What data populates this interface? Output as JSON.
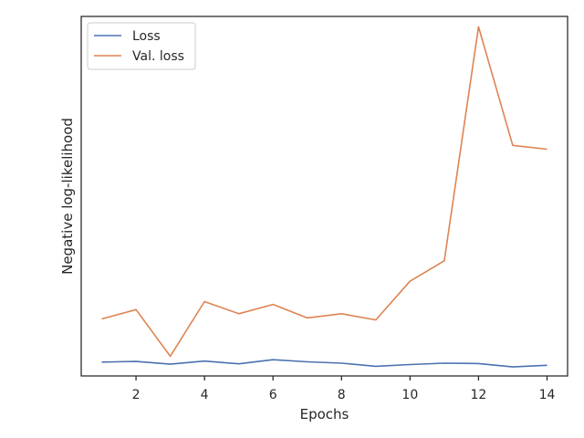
{
  "chart_data": {
    "type": "line",
    "title": "",
    "xlabel": "Epochs",
    "ylabel": "Negative log-likelihood",
    "x": [
      1,
      2,
      3,
      4,
      5,
      6,
      7,
      8,
      9,
      10,
      11,
      12,
      13,
      14
    ],
    "xlim": [
      0.4,
      14.6
    ],
    "ylim": [
      -0.1,
      10.3
    ],
    "xticks": [
      2,
      4,
      6,
      8,
      10,
      12,
      14
    ],
    "yticks_visible": false,
    "grid": false,
    "legend_position": "top-left",
    "series": [
      {
        "name": "Loss",
        "color": "#4c72b0",
        "values": [
          0.3,
          0.32,
          0.24,
          0.33,
          0.25,
          0.37,
          0.31,
          0.27,
          0.18,
          0.23,
          0.27,
          0.26,
          0.16,
          0.21
        ]
      },
      {
        "name": "Val. loss",
        "color": "#dd8452",
        "values": [
          1.55,
          1.82,
          0.47,
          2.05,
          1.7,
          1.97,
          1.58,
          1.7,
          1.52,
          2.64,
          3.23,
          10.0,
          6.57,
          6.46
        ]
      }
    ]
  }
}
